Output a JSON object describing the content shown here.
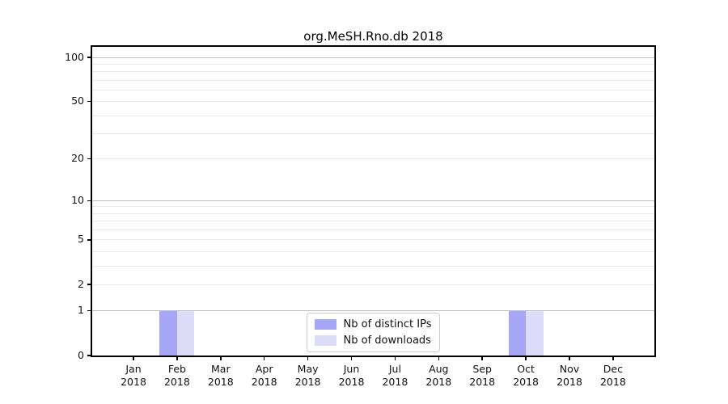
{
  "chart_data": {
    "type": "bar",
    "title": "org.MeSH.Rno.db 2018",
    "categories": [
      "Jan",
      "Feb",
      "Mar",
      "Apr",
      "May",
      "Jun",
      "Jul",
      "Aug",
      "Sep",
      "Oct",
      "Nov",
      "Dec"
    ],
    "category_year": "2018",
    "series": [
      {
        "name": "Nb of distinct IPs",
        "color": "#a6a6f6",
        "values": [
          0,
          1,
          0,
          0,
          0,
          0,
          0,
          0,
          0,
          1,
          0,
          0
        ]
      },
      {
        "name": "Nb of downloads",
        "color": "#dcdcf8",
        "values": [
          0,
          1,
          0,
          0,
          0,
          0,
          0,
          0,
          0,
          1,
          0,
          0
        ]
      }
    ],
    "yscale": "log1p",
    "ylim": [
      0,
      118
    ],
    "y_tick_values": [
      0,
      1,
      2,
      5,
      10,
      20,
      50,
      100
    ],
    "y_major_gridlines": [
      1,
      10,
      100
    ],
    "y_minor_gridlines": [
      2,
      3,
      4,
      5,
      6,
      7,
      8,
      9,
      20,
      30,
      40,
      50,
      60,
      70,
      80,
      90
    ],
    "grid": "horizontal-only",
    "legend_position": "lower center",
    "colors": {
      "major_grid": "#bdbdbd",
      "minor_grid": "#ebebeb",
      "axis": "#000000",
      "text": "#111111",
      "background": "#ffffff"
    }
  }
}
